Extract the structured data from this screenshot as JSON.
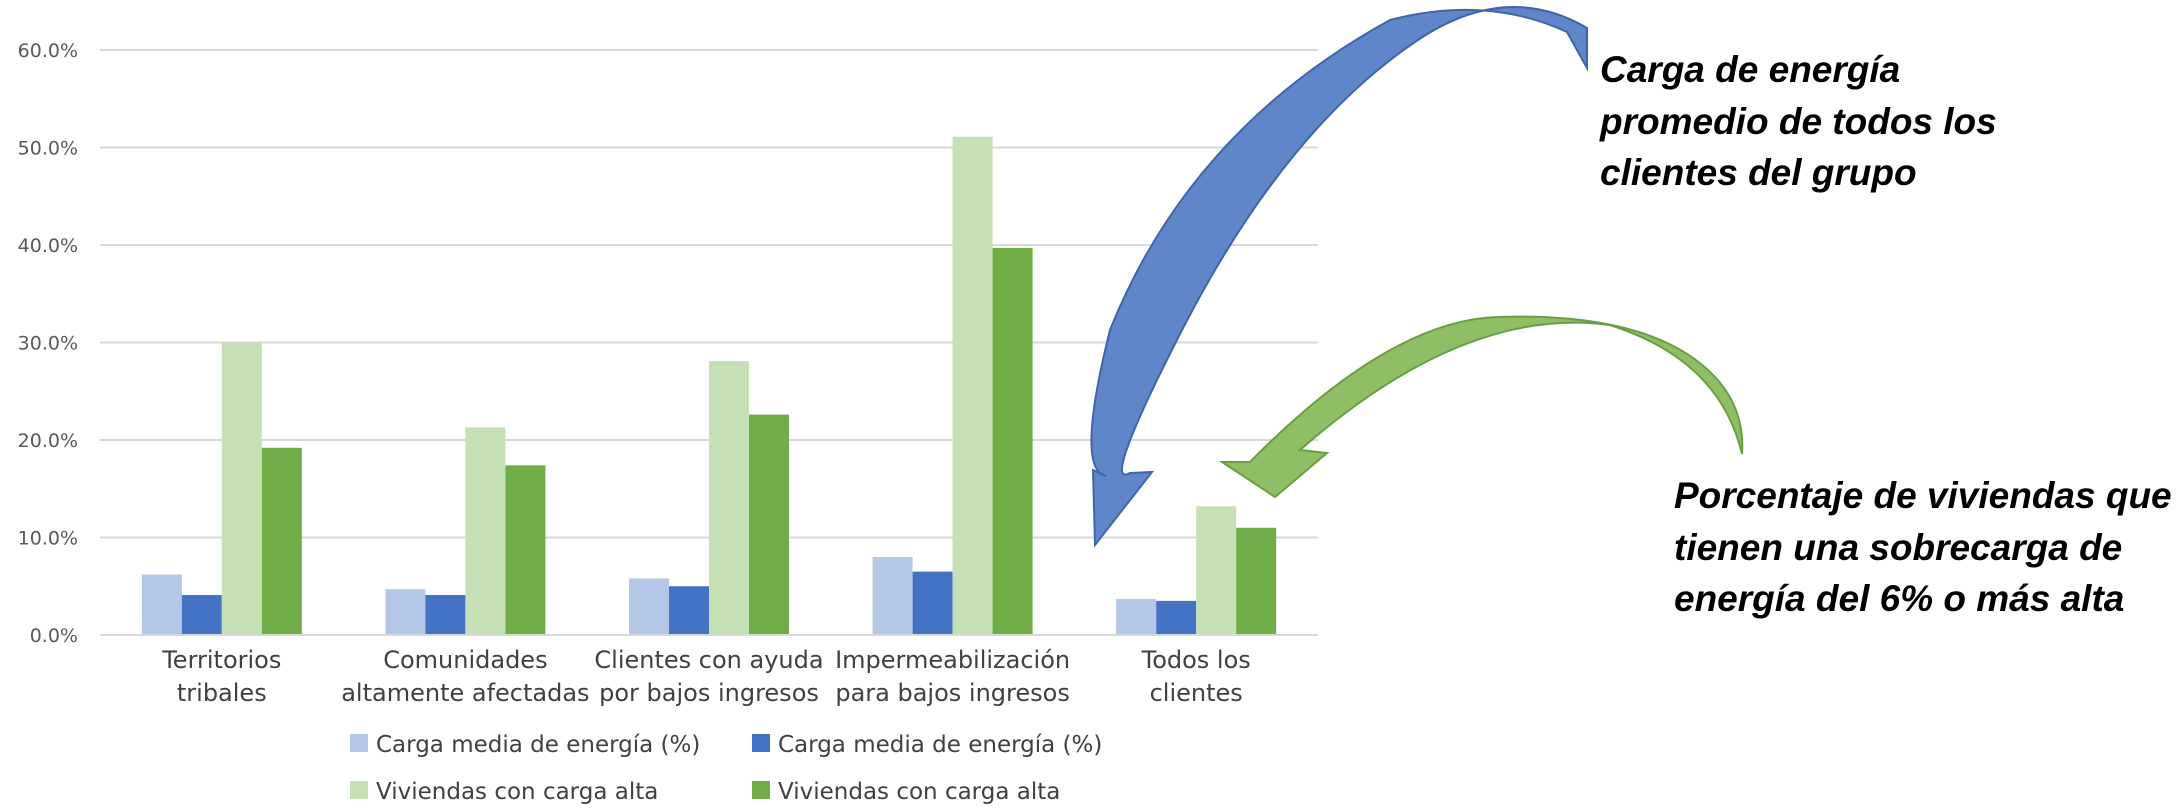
{
  "chart_data": {
    "type": "bar",
    "categories": [
      [
        "Territorios",
        "tribales"
      ],
      [
        "Comunidades",
        "altamente afectadas"
      ],
      [
        "Clientes con ayuda",
        "por bajos ingresos"
      ],
      [
        "Impermeabilización",
        "para bajos ingresos"
      ],
      [
        "Todos los",
        "clientes"
      ]
    ],
    "series": [
      {
        "name": "Carga media de energía (%)",
        "color": "#b4c7e7",
        "values": [
          6.2,
          4.7,
          5.8,
          8.0,
          3.7
        ]
      },
      {
        "name": "Carga media de energía (%)",
        "color": "#4472c4",
        "values": [
          4.1,
          4.1,
          5.0,
          6.5,
          3.5
        ]
      },
      {
        "name": "Viviendas con carga alta",
        "color": "#c5e0b4",
        "values": [
          30.0,
          21.3,
          28.1,
          51.1,
          13.2
        ]
      },
      {
        "name": "Viviendas con carga alta",
        "color": "#70ad47",
        "values": [
          19.2,
          17.4,
          22.6,
          39.7,
          11.0
        ]
      }
    ],
    "yticks": [
      "0.0%",
      "10.0%",
      "20.0%",
      "30.0%",
      "40.0%",
      "50.0%",
      "60.0%"
    ],
    "ylim": [
      0,
      60
    ],
    "grid": true,
    "legend_position": "bottom",
    "annotations": {
      "blue_arrow": {
        "lines": [
          "Carga de energía",
          "promedio de todos los",
          "clientes del grupo"
        ],
        "color": "#4472c4"
      },
      "green_arrow": {
        "lines": [
          "Porcentaje de viviendas que",
          "tienen una sobrecarga de",
          "energía del 6% o más alta"
        ],
        "color": "#70ad47"
      }
    }
  }
}
